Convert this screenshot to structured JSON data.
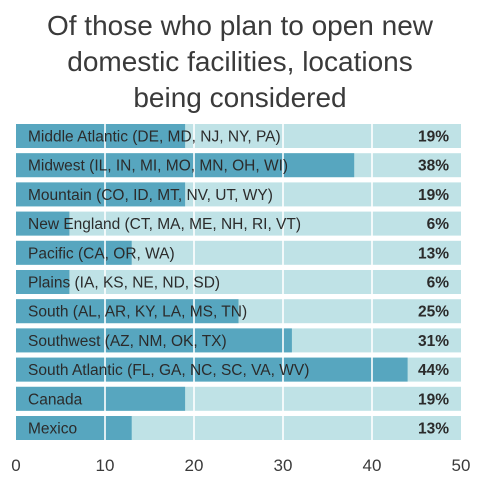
{
  "chart_data": {
    "type": "bar",
    "orientation": "horizontal",
    "title": "Of those who plan to open new domestic facilities, locations being considered",
    "title_lines": [
      "Of those who plan to open new",
      "domestic facilities, locations",
      "being considered"
    ],
    "categories": [
      "Middle Atlantic (DE, MD, NJ, NY, PA)",
      "Midwest (IL, IN, MI, MO, MN, OH, WI)",
      "Mountain (CO, ID, MT, NV, UT, WY)",
      "New England (CT, MA, ME, NH, RI, VT)",
      "Pacific (CA, OR, WA)",
      "Plains (IA, KS, NE, ND, SD)",
      "South (AL, AR, KY, LA, MS, TN)",
      "Southwest (AZ, NM, OK, TX)",
      "South Atlantic (FL, GA, NC, SC, VA, WV)",
      "Canada",
      "Mexico"
    ],
    "values": [
      19,
      38,
      19,
      6,
      13,
      6,
      25,
      31,
      44,
      19,
      13
    ],
    "value_labels": [
      "19%",
      "38%",
      "19%",
      "6%",
      "13%",
      "6%",
      "25%",
      "31%",
      "44%",
      "19%",
      "13%"
    ],
    "xlim": [
      0,
      50
    ],
    "xticks": [
      "0",
      "10",
      "20",
      "30",
      "40",
      "50"
    ],
    "xlabel": "",
    "ylabel": "",
    "grid": true,
    "legend": "none",
    "colors": {
      "bar": "#57a6bf",
      "track": "#bfe2e6",
      "grid": "#ffffff",
      "text": "#2b2b2b"
    }
  }
}
